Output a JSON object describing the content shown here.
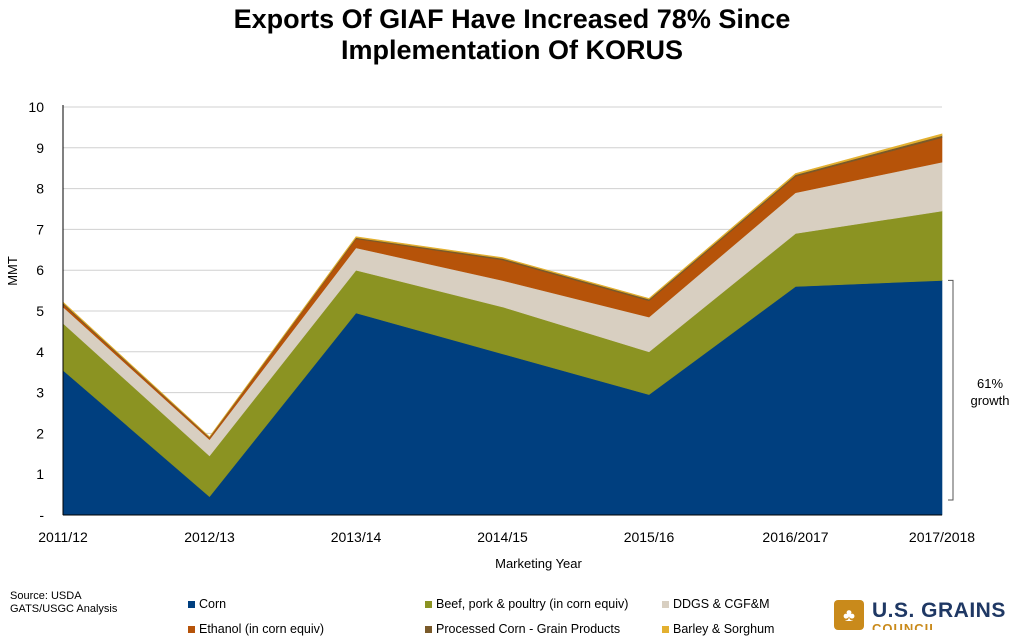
{
  "chart_data": {
    "type": "area",
    "stacked": true,
    "title_lines": [
      "Exports Of GIAF Have Increased 78% Since",
      "Implementation Of KORUS"
    ],
    "xlabel": "Marketing Year",
    "ylabel": "MMT",
    "categories": [
      "2011/12",
      "2012/13",
      "2013/14",
      "2014/15",
      "2015/16",
      "2016/2017",
      "2017/2018"
    ],
    "y_tick_labels": [
      "-",
      "1",
      "2",
      "3",
      "4",
      "5",
      "6",
      "7",
      "8",
      "9",
      "10"
    ],
    "ylim": [
      0,
      10
    ],
    "grid": true,
    "legend_position": "bottom",
    "series": [
      {
        "name": "Corn",
        "color": "#003f7f",
        "values": [
          3.55,
          0.45,
          4.95,
          3.95,
          2.95,
          5.6,
          5.75
        ]
      },
      {
        "name": "Beef, pork & poultry (in corn equiv)",
        "color": "#8b9322",
        "values": [
          1.15,
          1.0,
          1.05,
          1.15,
          1.05,
          1.3,
          1.7
        ]
      },
      {
        "name": "DDGS & CGF&M",
        "color": "#d8cfc1",
        "values": [
          0.4,
          0.4,
          0.55,
          0.65,
          0.85,
          1.0,
          1.2
        ]
      },
      {
        "name": "Ethanol (in corn equiv)",
        "color": "#b65309",
        "values": [
          0.07,
          0.04,
          0.22,
          0.5,
          0.4,
          0.4,
          0.6
        ]
      },
      {
        "name": "Processed Corn - Grain Products",
        "color": "#7a5a2a",
        "values": [
          0.03,
          0.02,
          0.03,
          0.04,
          0.04,
          0.04,
          0.05
        ]
      },
      {
        "name": "Barley & Sorghum",
        "color": "#e3b030",
        "values": [
          0.02,
          0.01,
          0.02,
          0.02,
          0.02,
          0.03,
          0.04
        ]
      }
    ],
    "annotation": {
      "lines": [
        "61%",
        "growth"
      ]
    }
  },
  "source_lines": [
    "Source: USDA",
    "GATS/USGC Analysis"
  ],
  "legend": [
    {
      "label": "Corn",
      "color": "#003f7f"
    },
    {
      "label": "Beef, pork & poultry (in corn equiv)",
      "color": "#8b9322"
    },
    {
      "label": "DDGS & CGF&M",
      "color": "#d8cfc1"
    },
    {
      "label": "Ethanol (in corn equiv)",
      "color": "#b65309"
    },
    {
      "label": "Processed Corn - Grain Products",
      "color": "#7a5a2a"
    },
    {
      "label": "Barley & Sorghum",
      "color": "#e3b030"
    }
  ],
  "logo": {
    "name": "U.S. GRAINS",
    "sub": "COUNCIL",
    "mark": "♣"
  }
}
